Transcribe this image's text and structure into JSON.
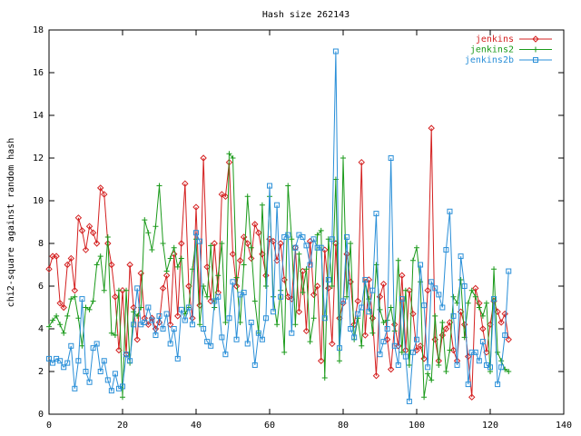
{
  "chart_data": {
    "type": "line",
    "title": "Hash size 262143",
    "ylabel": "chi2-square against random hash",
    "xlim": [
      0,
      140
    ],
    "ylim": [
      0,
      18
    ],
    "xticks": [
      0,
      20,
      40,
      60,
      80,
      100,
      120,
      140
    ],
    "yticks": [
      0,
      2,
      4,
      6,
      8,
      10,
      12,
      14,
      16,
      18
    ],
    "legend": "top right",
    "x": [
      0,
      1,
      2,
      3,
      4,
      5,
      6,
      7,
      8,
      9,
      10,
      11,
      12,
      13,
      14,
      15,
      16,
      17,
      18,
      19,
      20,
      21,
      22,
      23,
      24,
      25,
      26,
      27,
      28,
      29,
      30,
      31,
      32,
      33,
      34,
      35,
      36,
      37,
      38,
      39,
      40,
      41,
      42,
      43,
      44,
      45,
      46,
      47,
      48,
      49,
      50,
      51,
      52,
      53,
      54,
      55,
      56,
      57,
      58,
      59,
      60,
      61,
      62,
      63,
      64,
      65,
      66,
      67,
      68,
      69,
      70,
      71,
      72,
      73,
      74,
      75,
      76,
      77,
      78,
      79,
      80,
      81,
      82,
      83,
      84,
      85,
      86,
      87,
      88,
      89,
      90,
      91,
      92,
      93,
      94,
      95,
      96,
      97,
      98,
      99,
      100,
      101,
      102,
      103,
      104,
      105,
      106,
      107,
      108,
      109,
      110,
      111,
      112,
      113,
      114,
      115,
      116,
      117,
      118,
      119,
      120,
      121,
      122,
      123,
      124,
      125
    ],
    "series": [
      {
        "name": "jenkins",
        "color": "#d42020",
        "marker": "diamond",
        "values": [
          6.8,
          7.4,
          7.4,
          5.2,
          5.0,
          7.0,
          7.3,
          5.8,
          9.2,
          8.6,
          7.7,
          8.8,
          8.5,
          8.0,
          10.6,
          10.3,
          8.0,
          7.0,
          5.5,
          3.0,
          5.8,
          2.8,
          7.0,
          5.0,
          3.5,
          6.6,
          4.5,
          4.2,
          4.5,
          4.0,
          4.3,
          5.9,
          6.5,
          4.2,
          7.5,
          4.6,
          8.0,
          10.8,
          6.0,
          4.5,
          9.7,
          5.1,
          12.0,
          6.9,
          5.3,
          8.0,
          5.7,
          10.3,
          10.2,
          11.8,
          7.5,
          6.0,
          7.2,
          8.3,
          8.0,
          7.3,
          8.9,
          8.5,
          7.5,
          6.5,
          8.2,
          8.1,
          7.2,
          8.0,
          6.3,
          5.5,
          5.4,
          7.8,
          4.8,
          6.7,
          3.9,
          8.1,
          5.6,
          6.0,
          2.5,
          7.7,
          5.9,
          3.3,
          8.0,
          4.5,
          5.2,
          7.5,
          6.2,
          4.2,
          5.3,
          11.8,
          3.7,
          6.3,
          4.5,
          1.8,
          5.5,
          6.1,
          3.5,
          2.1,
          4.2,
          3.2,
          6.5,
          3.0,
          5.8,
          4.7,
          3.0,
          3.2,
          2.6,
          5.8,
          13.4,
          3.5,
          2.5,
          3.7,
          4.0,
          4.3,
          3.0,
          2.5,
          4.8,
          4.2,
          2.7,
          0.8,
          5.9,
          5.2,
          4.0,
          2.9,
          4.2,
          5.3,
          4.8,
          4.3,
          4.7,
          3.5
        ]
      },
      {
        "name": "jenkins2",
        "color": "#1a9a1a",
        "marker": "plus",
        "values": [
          4.1,
          4.4,
          4.6,
          4.2,
          3.8,
          4.6,
          5.4,
          5.5,
          4.5,
          3.2,
          5.0,
          4.9,
          5.3,
          7.0,
          7.4,
          5.8,
          8.3,
          3.8,
          3.7,
          5.8,
          0.8,
          5.8,
          2.4,
          4.8,
          4.6,
          5.0,
          9.1,
          8.5,
          7.7,
          8.8,
          10.7,
          8.0,
          6.7,
          7.3,
          7.8,
          6.9,
          7.3,
          4.7,
          5.0,
          6.8,
          8.2,
          4.2,
          6.0,
          5.5,
          7.9,
          5.0,
          6.5,
          8.0,
          4.3,
          12.2,
          12.0,
          6.4,
          4.3,
          7.0,
          10.2,
          7.8,
          5.3,
          3.8,
          9.8,
          6.0,
          10.2,
          5.5,
          4.2,
          5.8,
          2.9,
          10.7,
          8.2,
          4.2,
          7.5,
          5.7,
          6.8,
          3.4,
          4.5,
          8.4,
          8.6,
          1.7,
          8.2,
          6.0,
          11.0,
          2.5,
          12.0,
          5.5,
          8.0,
          3.5,
          4.5,
          3.2,
          6.2,
          5.4,
          3.8,
          7.0,
          4.9,
          4.3,
          4.4,
          5.0,
          3.9,
          7.2,
          2.9,
          5.8,
          2.3,
          7.2,
          7.8,
          6.2,
          0.8,
          1.9,
          1.6,
          4.6,
          2.3,
          4.3,
          2.0,
          3.0,
          5.5,
          5.2,
          6.3,
          3.6,
          5.2,
          5.8,
          5.5,
          5.0,
          4.6,
          5.2,
          2.0,
          6.8,
          2.9,
          2.5,
          2.1,
          2.0
        ]
      },
      {
        "name": "jenkins2b",
        "color": "#2a8fd8",
        "marker": "square",
        "values": [
          2.6,
          2.4,
          2.6,
          2.5,
          2.2,
          2.4,
          3.2,
          1.2,
          2.5,
          5.4,
          2.0,
          1.5,
          3.1,
          3.3,
          2.0,
          2.5,
          1.6,
          1.1,
          1.9,
          1.2,
          1.3,
          2.8,
          2.5,
          4.2,
          5.9,
          4.2,
          4.3,
          5.0,
          4.4,
          3.7,
          4.6,
          4.0,
          4.7,
          3.3,
          4.0,
          2.6,
          4.9,
          4.4,
          5.0,
          4.2,
          8.5,
          8.1,
          4.0,
          3.4,
          3.2,
          5.3,
          5.5,
          3.6,
          2.8,
          4.5,
          6.2,
          3.5,
          5.6,
          5.7,
          3.3,
          4.3,
          2.3,
          3.8,
          3.5,
          4.5,
          10.7,
          4.8,
          9.8,
          5.5,
          8.3,
          8.4,
          3.8,
          7.8,
          8.4,
          8.3,
          7.9,
          7.0,
          8.2,
          7.8,
          7.8,
          4.5,
          6.3,
          8.2,
          17.0,
          3.1,
          5.3,
          8.3,
          4.0,
          3.6,
          4.7,
          5.0,
          6.3,
          4.8,
          5.8,
          9.4,
          2.8,
          3.4,
          4.0,
          12.0,
          3.2,
          2.3,
          5.4,
          2.7,
          0.6,
          2.9,
          3.5,
          7.0,
          5.1,
          2.2,
          6.2,
          5.9,
          5.6,
          5.0,
          7.7,
          9.5,
          4.6,
          2.3,
          7.4,
          6.0,
          1.4,
          2.9,
          2.9,
          2.5,
          3.4,
          2.3,
          2.2,
          5.4,
          1.4,
          2.2,
          3.7,
          6.7
        ]
      }
    ]
  }
}
